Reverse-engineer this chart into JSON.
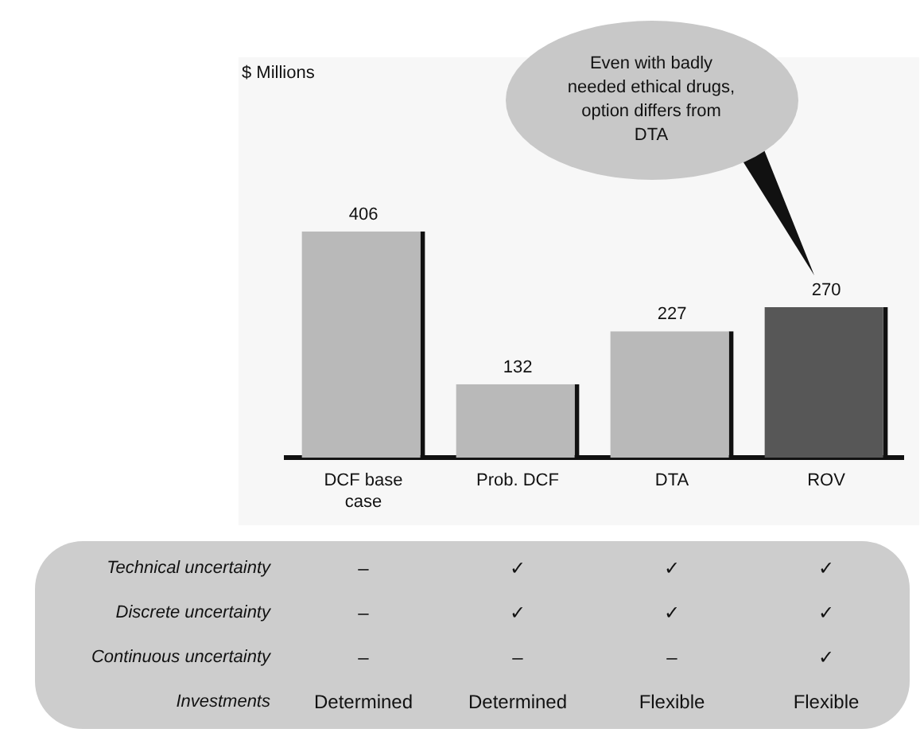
{
  "chart_data": [
    {
      "type": "bar",
      "ylabel": "$ Millions",
      "categories": [
        "DCF base case",
        "Prob. DCF",
        "DTA",
        "ROV"
      ],
      "values": [
        406,
        132,
        227,
        270
      ],
      "colors": [
        "#b9b9b9",
        "#b9b9b9",
        "#b9b9b9",
        "#575757"
      ],
      "data_labels": true,
      "grid": false,
      "legend": false,
      "annotations": [
        "Even with badly needed ethical drugs, option differs from DTA"
      ]
    },
    {
      "type": "other",
      "y_categories": [
        "Technical uncertainty",
        "Discrete uncertainty",
        "Continuous uncertainty",
        "Investments"
      ],
      "cell_labels": [
        [
          "–",
          "✓",
          "✓",
          "✓"
        ],
        [
          "–",
          "✓",
          "✓",
          "✓"
        ],
        [
          "–",
          "–",
          "–",
          "✓"
        ],
        [
          "Determined",
          "Determined",
          "Flexible",
          "Flexible"
        ]
      ]
    }
  ]
}
